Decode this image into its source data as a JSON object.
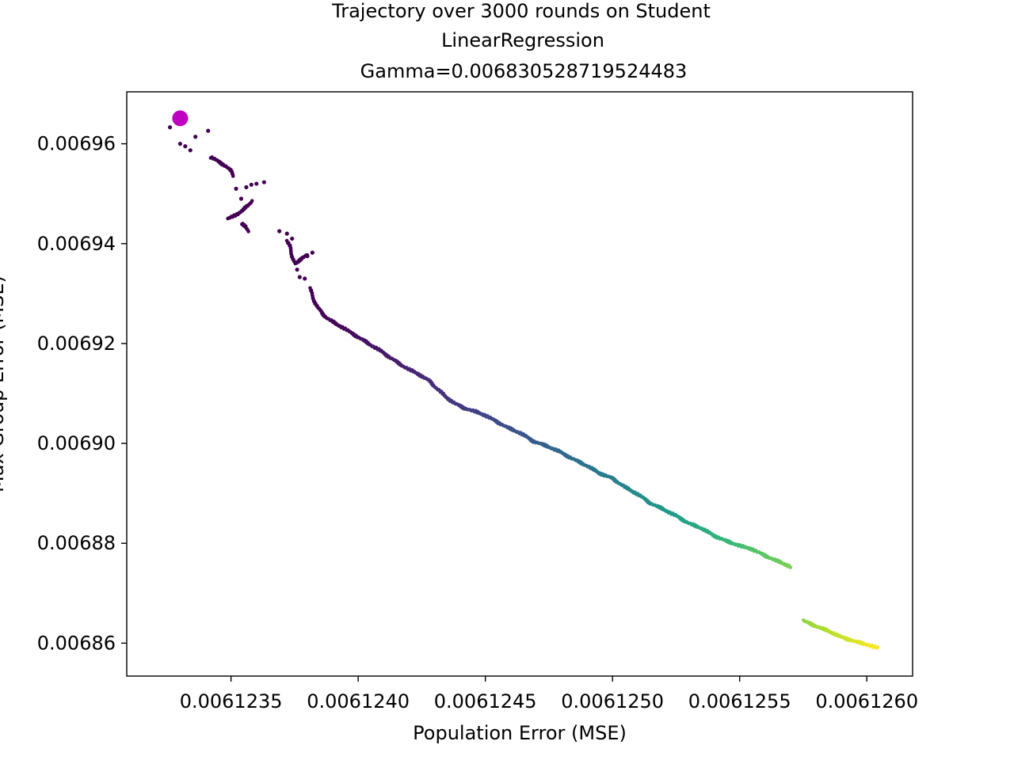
{
  "chart_data": {
    "type": "scatter",
    "title": [
      "Trajectory over 3000 rounds on Student",
      "LinearRegression",
      "Gamma=0.006830528719524483"
    ],
    "xlabel": "Population Error (MSE)",
    "ylabel": "Max Group Error (MSE)",
    "xlim": [
      0.00612309,
      0.00612618
    ],
    "ylim": [
      0.0068534,
      0.0069704
    ],
    "xticks": [
      0.0061235,
      0.006124,
      0.0061245,
      0.006125,
      0.0061255,
      0.006126
    ],
    "xtick_labels": [
      "0.0061235",
      "0.0061240",
      "0.0061245",
      "0.0061250",
      "0.0061255",
      "0.0061260"
    ],
    "yticks": [
      0.00686,
      0.00688,
      0.0069,
      0.00692,
      0.00694,
      0.00696
    ],
    "ytick_labels": [
      "0.00686",
      "0.00688",
      "0.00690",
      "0.00692",
      "0.00694",
      "0.00696"
    ],
    "grid": false,
    "colormap": "viridis",
    "rounds": 3000,
    "start_point": {
      "x": 0.0061233,
      "y": 0.0069651,
      "color": "#c000c0"
    },
    "scatter_points": [
      [
        0.00612326,
        0.0069633
      ],
      [
        0.0061233,
        0.00696
      ],
      [
        0.00612332,
        0.0069595
      ],
      [
        0.00612334,
        0.0069587
      ],
      [
        0.00612336,
        0.0069614
      ],
      [
        0.00612341,
        0.0069626
      ],
      [
        0.00612352,
        0.006951
      ],
      [
        0.00612354,
        0.006949
      ],
      [
        0.00612356,
        0.0069513
      ],
      [
        0.00612358,
        0.0069518
      ],
      [
        0.0061236,
        0.006952
      ],
      [
        0.00612363,
        0.0069523
      ],
      [
        0.00612369,
        0.0069425
      ],
      [
        0.00612372,
        0.006942
      ],
      [
        0.00612374,
        0.006941
      ],
      [
        0.00612376,
        0.0069348
      ],
      [
        0.00612377,
        0.0069333
      ],
      [
        0.00612379,
        0.006933
      ],
      [
        0.0061238,
        0.0069375
      ],
      [
        0.00612382,
        0.0069382
      ]
    ],
    "trajectory_path": [
      [
        0.00612342,
        0.0069573
      ],
      [
        0.00612345,
        0.0069565
      ],
      [
        0.00612348,
        0.0069555
      ],
      [
        0.0061235,
        0.0069545
      ],
      [
        0.00612351,
        0.0069536
      ],
      [
        0.00612349,
        0.006945
      ],
      [
        0.00612352,
        0.0069458
      ],
      [
        0.00612355,
        0.0069468
      ],
      [
        0.00612357,
        0.0069478
      ],
      [
        0.00612358,
        0.0069485
      ],
      [
        0.00612354,
        0.006944
      ],
      [
        0.00612356,
        0.0069434
      ],
      [
        0.00612357,
        0.0069425
      ],
      [
        0.00612372,
        0.0069405
      ],
      [
        0.00612373,
        0.0069395
      ],
      [
        0.00612375,
        0.006936
      ],
      [
        0.00612378,
        0.006937
      ],
      [
        0.0061238,
        0.0069378
      ],
      [
        0.00612381,
        0.006931
      ],
      [
        0.00612382,
        0.0069295
      ],
      [
        0.00612384,
        0.0069272
      ],
      [
        0.00612386,
        0.006926
      ],
      [
        0.00612388,
        0.006925
      ],
      [
        0.00612391,
        0.006924
      ],
      [
        0.00612394,
        0.0069232
      ],
      [
        0.00612397,
        0.0069222
      ],
      [
        0.006124,
        0.0069213
      ],
      [
        0.00612404,
        0.00692
      ],
      [
        0.00612408,
        0.0069188
      ],
      [
        0.00612412,
        0.0069174
      ],
      [
        0.00612416,
        0.006916
      ],
      [
        0.0061242,
        0.0069148
      ],
      [
        0.00612424,
        0.0069138
      ],
      [
        0.00612428,
        0.0069125
      ],
      [
        0.00612431,
        0.006911
      ],
      [
        0.00612434,
        0.0069095
      ],
      [
        0.00612438,
        0.006908
      ],
      [
        0.00612442,
        0.006907
      ],
      [
        0.00612446,
        0.0069064
      ],
      [
        0.0061245,
        0.0069056
      ],
      [
        0.00612454,
        0.0069045
      ],
      [
        0.00612459,
        0.0069031
      ],
      [
        0.00612464,
        0.006902
      ],
      [
        0.00612469,
        0.0069004
      ],
      [
        0.00612474,
        0.0068995
      ],
      [
        0.00612479,
        0.0068984
      ],
      [
        0.00612484,
        0.006897
      ],
      [
        0.0061249,
        0.0068955
      ],
      [
        0.00612495,
        0.006894
      ],
      [
        0.006125,
        0.006893
      ],
      [
        0.00612505,
        0.0068912
      ],
      [
        0.0061251,
        0.0068898
      ],
      [
        0.00612515,
        0.006888
      ],
      [
        0.0061252,
        0.0068868
      ],
      [
        0.00612525,
        0.0068855
      ],
      [
        0.0061253,
        0.006884
      ],
      [
        0.00612535,
        0.006883
      ],
      [
        0.0061254,
        0.0068815
      ],
      [
        0.00612545,
        0.0068804
      ],
      [
        0.0061255,
        0.0068795
      ],
      [
        0.00612555,
        0.0068788
      ],
      [
        0.0061256,
        0.0068775
      ],
      [
        0.00612565,
        0.0068764
      ],
      [
        0.0061257,
        0.0068753
      ],
      [
        0.00612575,
        0.0068645
      ],
      [
        0.0061258,
        0.0068634
      ],
      [
        0.00612585,
        0.0068624
      ],
      [
        0.0061259,
        0.0068612
      ],
      [
        0.00612595,
        0.0068604
      ],
      [
        0.006126,
        0.0068597
      ],
      [
        0.00612604,
        0.0068591
      ]
    ]
  }
}
